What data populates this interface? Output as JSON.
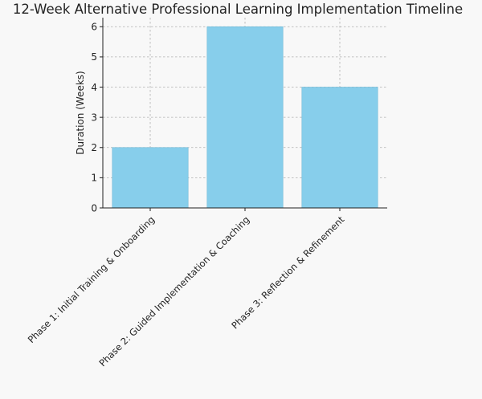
{
  "chart_data": {
    "type": "bar",
    "title": "12-Week Alternative Professional Learning Implementation Timeline",
    "xlabel": "",
    "ylabel": "Duration (Weeks)",
    "categories": [
      "Phase 1: Initial Training & Onboarding",
      "Phase 2: Guided Implementation & Coaching",
      "Phase 3: Reflection & Refinement"
    ],
    "values": [
      2,
      6,
      4
    ],
    "ylim": [
      0,
      6.3
    ],
    "yticks": [
      0,
      1,
      2,
      3,
      4,
      5,
      6
    ],
    "grid": true,
    "bar_color": "#87ceeb",
    "bar_edge_color": "#6fb8d6"
  }
}
